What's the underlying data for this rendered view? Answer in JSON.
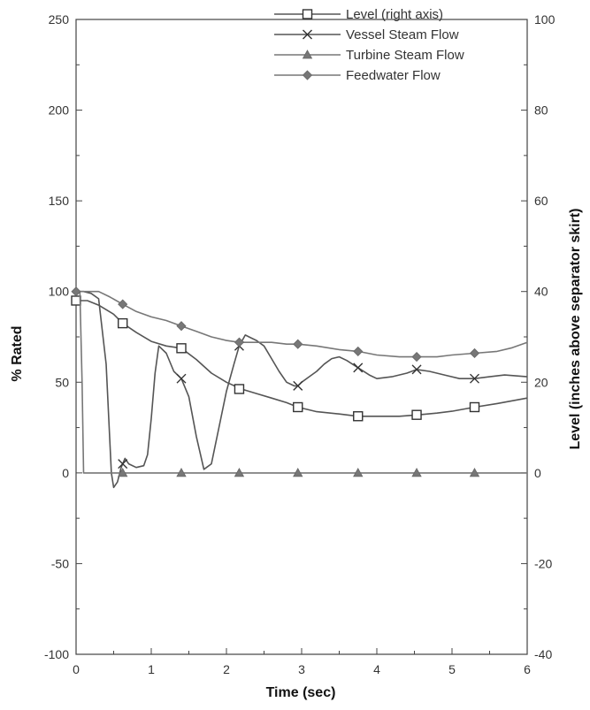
{
  "chart_data": {
    "type": "line",
    "title": "",
    "xlabel": "Time (sec)",
    "ylabel": "% Rated",
    "y2label": "Level (inches above separator skirt)",
    "xlim": [
      0,
      6
    ],
    "ylim": [
      -100,
      250
    ],
    "y2lim": [
      -40,
      100
    ],
    "xticks": [
      "0",
      "1",
      "2",
      "3",
      "4",
      "5",
      "6"
    ],
    "yticks": [
      "-100",
      "-50",
      "0",
      "50",
      "100",
      "150",
      "200",
      "250"
    ],
    "y2ticks": [
      "-40",
      "-20",
      "0",
      "20",
      "40",
      "60",
      "80",
      "100"
    ],
    "grid": false,
    "legend": "top-right",
    "series": [
      {
        "name": "Level (right axis)",
        "axis": "right",
        "marker": "open-square",
        "color": "#555555",
        "x": [
          0,
          0.15,
          0.3,
          0.5,
          0.62,
          0.8,
          1.0,
          1.2,
          1.4,
          1.6,
          1.8,
          2.0,
          2.2,
          2.4,
          2.6,
          2.8,
          2.95,
          3.2,
          3.5,
          3.75,
          4.0,
          4.3,
          4.55,
          4.8,
          5.0,
          5.3,
          5.6,
          6.0
        ],
        "y": [
          38,
          38,
          37,
          35,
          33,
          31,
          29,
          28,
          27.5,
          25,
          22,
          20,
          18.5,
          17.5,
          16.5,
          15.5,
          14.5,
          13.5,
          13,
          12.5,
          12.5,
          12.5,
          12.8,
          13.2,
          13.6,
          14.5,
          15.3,
          16.5
        ],
        "markers_x": [
          0,
          0.62,
          1.4,
          2.17,
          2.95,
          3.75,
          4.53,
          5.3
        ],
        "markers_y": [
          38,
          33,
          27.5,
          18.5,
          14.5,
          12.5,
          12.8,
          14.5
        ]
      },
      {
        "name": "Vessel Steam Flow",
        "axis": "left",
        "marker": "x",
        "color": "#555555",
        "x": [
          0,
          0.1,
          0.2,
          0.3,
          0.4,
          0.47,
          0.5,
          0.55,
          0.6,
          0.65,
          0.7,
          0.8,
          0.9,
          0.95,
          1.0,
          1.05,
          1.1,
          1.2,
          1.3,
          1.4,
          1.5,
          1.6,
          1.7,
          1.8,
          1.9,
          2.0,
          2.1,
          2.17,
          2.25,
          2.3,
          2.4,
          2.5,
          2.6,
          2.7,
          2.8,
          2.9,
          2.95,
          3.0,
          3.1,
          3.2,
          3.3,
          3.4,
          3.5,
          3.6,
          3.75,
          3.9,
          4.0,
          4.2,
          4.4,
          4.53,
          4.7,
          4.9,
          5.1,
          5.3,
          5.5,
          5.7,
          6.0
        ],
        "y": [
          100,
          100,
          99,
          96,
          60,
          0,
          -8,
          -5,
          3,
          8,
          5,
          3,
          4,
          10,
          30,
          55,
          70,
          66,
          56,
          52,
          42,
          20,
          2,
          5,
          25,
          45,
          60,
          70,
          76,
          75,
          73,
          70,
          63,
          56,
          50,
          48,
          48,
          50,
          53,
          56,
          60,
          63,
          64,
          62,
          58,
          54,
          52,
          53,
          55,
          57,
          56,
          54,
          52,
          52,
          53,
          54,
          53
        ]
      },
      {
        "name": "Turbine Steam Flow",
        "axis": "left",
        "marker": "filled-triangle",
        "color": "#777777",
        "x": [
          0,
          0.05,
          0.08,
          0.1,
          0.5,
          0.62,
          1.0,
          1.4,
          2.0,
          2.17,
          2.95,
          3.5,
          3.75,
          4.0,
          4.53,
          5.0,
          5.3,
          6.0
        ],
        "y": [
          100,
          100,
          50,
          0,
          0,
          0,
          0,
          0,
          0,
          0,
          0,
          0,
          0,
          0,
          0,
          0,
          0,
          0
        ],
        "markers_x": [
          0.62,
          1.4,
          2.17,
          2.95,
          3.75,
          4.53,
          5.3
        ],
        "markers_y": [
          0,
          0,
          0,
          0,
          0,
          0,
          0
        ]
      },
      {
        "name": "Feedwater Flow",
        "axis": "left",
        "marker": "filled-diamond",
        "color": "#777777",
        "x": [
          0,
          0.1,
          0.3,
          0.45,
          0.62,
          0.8,
          1.0,
          1.2,
          1.4,
          1.6,
          1.8,
          2.0,
          2.17,
          2.4,
          2.6,
          2.8,
          2.95,
          3.2,
          3.5,
          3.75,
          4.0,
          4.3,
          4.53,
          4.8,
          5.0,
          5.3,
          5.6,
          5.8,
          6.0
        ],
        "y": [
          100,
          100,
          100,
          97,
          93,
          89,
          86,
          84,
          81,
          78,
          75,
          73,
          72,
          72,
          72,
          71,
          71,
          70,
          68,
          67,
          65,
          64,
          64,
          64,
          65,
          66,
          67,
          69,
          72
        ],
        "markers_x": [
          0,
          0.62,
          1.4,
          2.17,
          2.95,
          3.75,
          4.53,
          5.3
        ],
        "markers_y": [
          100,
          93,
          81,
          72,
          71,
          67,
          64,
          66
        ]
      }
    ]
  }
}
